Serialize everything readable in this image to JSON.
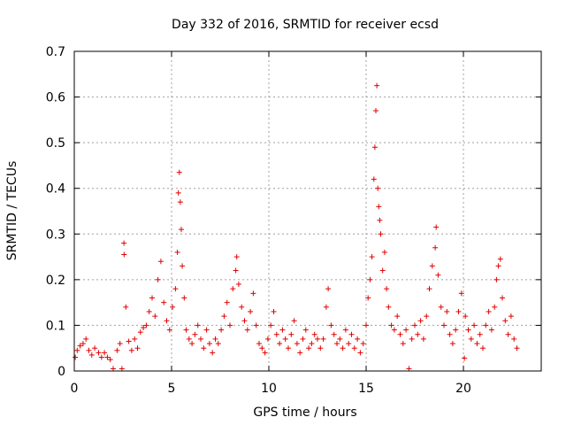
{
  "chart_data": {
    "type": "scatter",
    "title": "Day 332 of 2016, SRMTID for receiver ecsd",
    "xlabel": "GPS time / hours",
    "ylabel": "SRMTID / TECUs",
    "xlim": [
      0,
      24
    ],
    "ylim": [
      0,
      0.7
    ],
    "xticks": [
      0,
      5,
      10,
      15,
      20
    ],
    "yticks": [
      0,
      0.1,
      0.2,
      0.3,
      0.4,
      0.5,
      0.6,
      0.7
    ],
    "grid": true,
    "marker": "+",
    "color": "#e00000",
    "series": [
      {
        "name": "SRMTID",
        "points": [
          [
            0.05,
            0.03
          ],
          [
            0.15,
            0.045
          ],
          [
            0.3,
            0.055
          ],
          [
            0.45,
            0.06
          ],
          [
            0.6,
            0.07
          ],
          [
            0.75,
            0.045
          ],
          [
            0.9,
            0.035
          ],
          [
            1.05,
            0.05
          ],
          [
            1.25,
            0.04
          ],
          [
            1.4,
            0.03
          ],
          [
            1.55,
            0.04
          ],
          [
            1.7,
            0.03
          ],
          [
            1.85,
            0.025
          ],
          [
            2.0,
            0.005
          ],
          [
            2.2,
            0.045
          ],
          [
            2.35,
            0.06
          ],
          [
            2.45,
            0.005
          ],
          [
            2.55,
            0.28
          ],
          [
            2.56,
            0.255
          ],
          [
            2.65,
            0.14
          ],
          [
            2.8,
            0.065
          ],
          [
            2.95,
            0.045
          ],
          [
            3.1,
            0.07
          ],
          [
            3.25,
            0.05
          ],
          [
            3.4,
            0.085
          ],
          [
            3.55,
            0.095
          ],
          [
            3.7,
            0.1
          ],
          [
            3.85,
            0.13
          ],
          [
            4.0,
            0.16
          ],
          [
            4.15,
            0.12
          ],
          [
            4.3,
            0.2
          ],
          [
            4.45,
            0.24
          ],
          [
            4.6,
            0.15
          ],
          [
            4.75,
            0.11
          ],
          [
            4.9,
            0.09
          ],
          [
            5.05,
            0.14
          ],
          [
            5.2,
            0.18
          ],
          [
            5.3,
            0.26
          ],
          [
            5.35,
            0.39
          ],
          [
            5.4,
            0.435
          ],
          [
            5.45,
            0.37
          ],
          [
            5.5,
            0.31
          ],
          [
            5.55,
            0.23
          ],
          [
            5.65,
            0.16
          ],
          [
            5.75,
            0.09
          ],
          [
            5.9,
            0.07
          ],
          [
            6.05,
            0.06
          ],
          [
            6.2,
            0.08
          ],
          [
            6.35,
            0.1
          ],
          [
            6.5,
            0.07
          ],
          [
            6.65,
            0.05
          ],
          [
            6.8,
            0.09
          ],
          [
            6.95,
            0.06
          ],
          [
            7.1,
            0.04
          ],
          [
            7.25,
            0.07
          ],
          [
            7.4,
            0.06
          ],
          [
            7.55,
            0.09
          ],
          [
            7.7,
            0.12
          ],
          [
            7.85,
            0.15
          ],
          [
            8.0,
            0.1
          ],
          [
            8.15,
            0.18
          ],
          [
            8.3,
            0.22
          ],
          [
            8.35,
            0.25
          ],
          [
            8.45,
            0.19
          ],
          [
            8.6,
            0.14
          ],
          [
            8.75,
            0.11
          ],
          [
            8.9,
            0.09
          ],
          [
            9.05,
            0.13
          ],
          [
            9.2,
            0.17
          ],
          [
            9.35,
            0.1
          ],
          [
            9.5,
            0.06
          ],
          [
            9.65,
            0.05
          ],
          [
            9.8,
            0.04
          ],
          [
            9.95,
            0.07
          ],
          [
            10.1,
            0.1
          ],
          [
            10.25,
            0.13
          ],
          [
            10.4,
            0.08
          ],
          [
            10.55,
            0.06
          ],
          [
            10.7,
            0.09
          ],
          [
            10.85,
            0.07
          ],
          [
            11.0,
            0.05
          ],
          [
            11.15,
            0.08
          ],
          [
            11.3,
            0.11
          ],
          [
            11.45,
            0.06
          ],
          [
            11.6,
            0.04
          ],
          [
            11.75,
            0.07
          ],
          [
            11.9,
            0.09
          ],
          [
            12.05,
            0.05
          ],
          [
            12.2,
            0.06
          ],
          [
            12.35,
            0.08
          ],
          [
            12.5,
            0.07
          ],
          [
            12.65,
            0.05
          ],
          [
            12.8,
            0.07
          ],
          [
            12.95,
            0.14
          ],
          [
            13.05,
            0.18
          ],
          [
            13.2,
            0.1
          ],
          [
            13.35,
            0.08
          ],
          [
            13.5,
            0.06
          ],
          [
            13.65,
            0.07
          ],
          [
            13.8,
            0.05
          ],
          [
            13.95,
            0.09
          ],
          [
            14.1,
            0.06
          ],
          [
            14.25,
            0.08
          ],
          [
            14.4,
            0.05
          ],
          [
            14.55,
            0.07
          ],
          [
            14.7,
            0.04
          ],
          [
            14.85,
            0.06
          ],
          [
            15.0,
            0.1
          ],
          [
            15.1,
            0.16
          ],
          [
            15.2,
            0.2
          ],
          [
            15.3,
            0.25
          ],
          [
            15.4,
            0.42
          ],
          [
            15.45,
            0.49
          ],
          [
            15.5,
            0.57
          ],
          [
            15.55,
            0.625
          ],
          [
            15.6,
            0.4
          ],
          [
            15.65,
            0.36
          ],
          [
            15.7,
            0.33
          ],
          [
            15.75,
            0.3
          ],
          [
            15.85,
            0.22
          ],
          [
            15.95,
            0.26
          ],
          [
            16.05,
            0.18
          ],
          [
            16.15,
            0.14
          ],
          [
            16.3,
            0.1
          ],
          [
            16.45,
            0.09
          ],
          [
            16.6,
            0.12
          ],
          [
            16.75,
            0.08
          ],
          [
            16.9,
            0.06
          ],
          [
            17.05,
            0.09
          ],
          [
            17.2,
            0.005
          ],
          [
            17.35,
            0.07
          ],
          [
            17.5,
            0.1
          ],
          [
            17.65,
            0.08
          ],
          [
            17.8,
            0.11
          ],
          [
            17.95,
            0.07
          ],
          [
            18.1,
            0.12
          ],
          [
            18.25,
            0.18
          ],
          [
            18.4,
            0.23
          ],
          [
            18.55,
            0.27
          ],
          [
            18.6,
            0.315
          ],
          [
            18.7,
            0.21
          ],
          [
            18.85,
            0.14
          ],
          [
            19.0,
            0.1
          ],
          [
            19.15,
            0.13
          ],
          [
            19.3,
            0.08
          ],
          [
            19.45,
            0.06
          ],
          [
            19.6,
            0.09
          ],
          [
            19.75,
            0.13
          ],
          [
            19.9,
            0.17
          ],
          [
            20.05,
            0.028
          ],
          [
            20.1,
            0.12
          ],
          [
            20.25,
            0.09
          ],
          [
            20.4,
            0.07
          ],
          [
            20.55,
            0.1
          ],
          [
            20.7,
            0.06
          ],
          [
            20.85,
            0.08
          ],
          [
            21.0,
            0.05
          ],
          [
            21.15,
            0.1
          ],
          [
            21.3,
            0.13
          ],
          [
            21.45,
            0.09
          ],
          [
            21.6,
            0.14
          ],
          [
            21.7,
            0.2
          ],
          [
            21.8,
            0.23
          ],
          [
            21.9,
            0.245
          ],
          [
            22.0,
            0.16
          ],
          [
            22.15,
            0.11
          ],
          [
            22.3,
            0.08
          ],
          [
            22.45,
            0.12
          ],
          [
            22.6,
            0.07
          ],
          [
            22.75,
            0.05
          ]
        ]
      }
    ]
  }
}
